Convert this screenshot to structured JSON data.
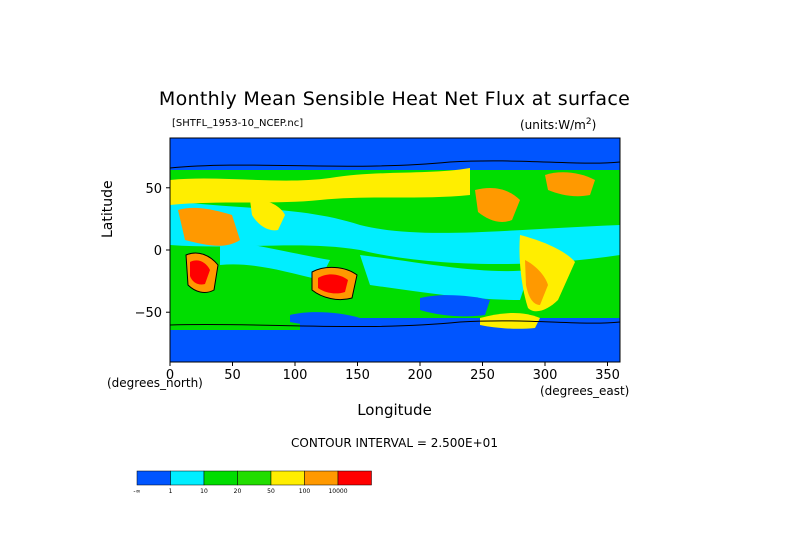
{
  "title": "Monthly Mean Sensible Heat Net Flux at surface",
  "filename": "[SHTFL_1953-10_NCEP.nc]",
  "units": "(units:W/m^2)",
  "xlabel": "Longitude",
  "ylabel": "Latitude",
  "x_unit_label": "(degrees_north)",
  "x_unit_label2": "(degrees_east)",
  "contour_interval": "CONTOUR INTERVAL = 2.500E+01",
  "chart_data": {
    "type": "heatmap",
    "title": "Monthly Mean Sensible Heat Net Flux at surface",
    "xlabel": "Longitude",
    "ylabel": "Latitude",
    "xlim": [
      0,
      360
    ],
    "ylim": [
      -90,
      90
    ],
    "xticks": [
      0,
      50,
      100,
      150,
      200,
      250,
      300,
      350
    ],
    "yticks": [
      50,
      0,
      -50
    ],
    "yticks_labels": [
      "50",
      "0",
      "−50"
    ],
    "colorbar": {
      "colors": [
        "#0055ff",
        "#00eeff",
        "#00dd00",
        "#22dd00",
        "#ffee00",
        "#ff9900",
        "#ff0000"
      ],
      "labels": [
        "-∞",
        "1",
        "10",
        "20",
        "50",
        "100",
        "10000"
      ]
    }
  }
}
